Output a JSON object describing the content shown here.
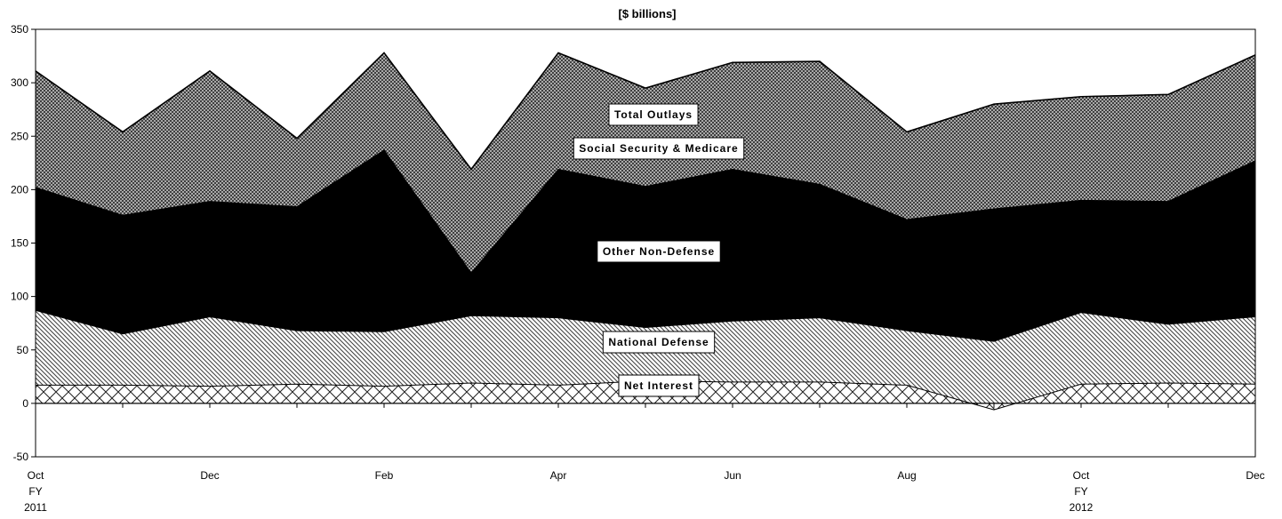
{
  "chart_data": {
    "type": "area",
    "title": "[$ billions]",
    "xlabel": "",
    "ylabel": "",
    "ylim": [
      -50,
      350
    ],
    "yticks": [
      350,
      300,
      250,
      200,
      150,
      100,
      50,
      0,
      -50
    ],
    "x_tick_labels": [
      {
        "index": 0,
        "lines": [
          "Oct",
          "FY",
          "2011"
        ]
      },
      {
        "index": 2,
        "lines": [
          "Dec"
        ]
      },
      {
        "index": 4,
        "lines": [
          "Feb"
        ]
      },
      {
        "index": 6,
        "lines": [
          "Apr"
        ]
      },
      {
        "index": 8,
        "lines": [
          "Jun"
        ]
      },
      {
        "index": 10,
        "lines": [
          "Aug"
        ]
      },
      {
        "index": 12,
        "lines": [
          "Oct",
          "FY",
          "2012"
        ]
      },
      {
        "index": 14,
        "lines": [
          "Dec"
        ]
      }
    ],
    "n_points": 15,
    "cumulative_series": [
      {
        "name": "Net Interest",
        "pattern": "crosshatch",
        "values": [
          17,
          17,
          16,
          18,
          16,
          19,
          17,
          21,
          20,
          20,
          17,
          -6,
          18,
          19,
          18
        ]
      },
      {
        "name": "National Defense",
        "pattern": "diagonal",
        "values": [
          87,
          65,
          81,
          68,
          67,
          82,
          80,
          71,
          77,
          80,
          68,
          58,
          85,
          74,
          81
        ]
      },
      {
        "name": "Other Non-Defense",
        "pattern": "solid-black",
        "values": [
          202,
          176,
          189,
          184,
          237,
          122,
          219,
          203,
          219,
          205,
          172,
          182,
          190,
          189,
          227
        ]
      },
      {
        "name": "Social Security & Medicare",
        "pattern": "fine-crosshatch",
        "values": [
          311,
          254,
          311,
          248,
          328,
          219,
          328,
          295,
          319,
          320,
          254,
          280,
          287,
          289,
          326
        ]
      }
    ],
    "total_line": {
      "name": "Total Outlays",
      "values": [
        311,
        254,
        311,
        248,
        328,
        219,
        328,
        295,
        319,
        320,
        254,
        280,
        287,
        289,
        326
      ]
    },
    "annotations": [
      "Total Outlays",
      "Social Security & Medicare",
      "Other Non-Defense",
      "National Defense",
      "Net Interest"
    ]
  }
}
